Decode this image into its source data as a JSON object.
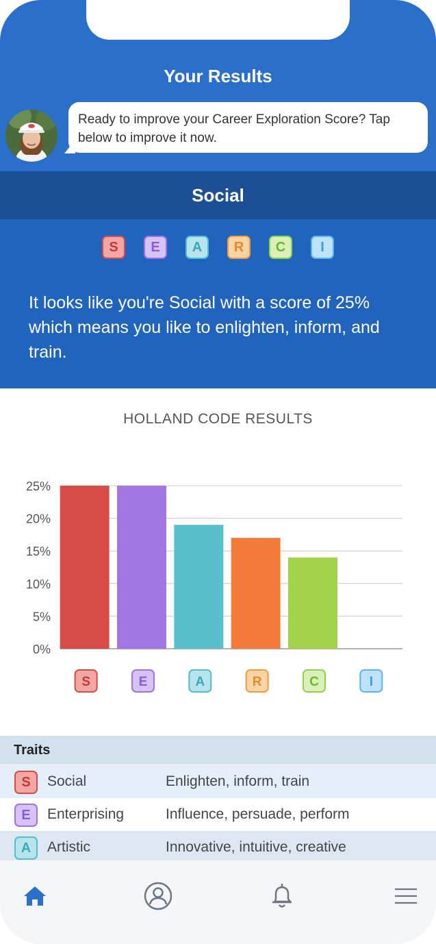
{
  "header": {
    "title": "Your Results",
    "message": "Ready to improve your Career Exploration Score? Tap below to improve it now."
  },
  "result": {
    "type_label": "Social",
    "summary": "It looks like you're Social with a score of 25% which means you like to enlighten, inform, and train."
  },
  "letters": [
    "S",
    "E",
    "A",
    "R",
    "C",
    "I"
  ],
  "letter_colors": {
    "S": {
      "fill": "#f3a6a6",
      "border": "#d94a45",
      "text": "#c23a35"
    },
    "E": {
      "fill": "#d6c2f4",
      "border": "#a073e2",
      "text": "#8a5bd6"
    },
    "A": {
      "fill": "#b7e3ea",
      "border": "#55bccb",
      "text": "#3aa8b8"
    },
    "R": {
      "fill": "#fbd4a6",
      "border": "#f29b3b",
      "text": "#e6892a"
    },
    "C": {
      "fill": "#d9f1b8",
      "border": "#93d04b",
      "text": "#6fb52f"
    },
    "I": {
      "fill": "#bfe2fb",
      "border": "#5ab4ef",
      "text": "#3a9ee0"
    }
  },
  "chart_data": {
    "type": "bar",
    "title": "HOLLAND CODE RESULTS",
    "categories": [
      "S",
      "E",
      "A",
      "R",
      "C",
      "I"
    ],
    "values": [
      25,
      25,
      19,
      17,
      14,
      0
    ],
    "colors": [
      "#d84c47",
      "#a375e2",
      "#58c0cd",
      "#f37b3a",
      "#a3d34a",
      "#5ab4ef"
    ],
    "y_ticks": [
      "0%",
      "5%",
      "10%",
      "15%",
      "20%",
      "25%"
    ],
    "ylim": [
      0,
      25
    ],
    "xlabel": "",
    "ylabel": "",
    "grid": true
  },
  "traits": {
    "header": "Traits",
    "rows": [
      {
        "letter": "S",
        "name": "Social",
        "desc": "Enlighten, inform, train",
        "bg": "#e4effa"
      },
      {
        "letter": "E",
        "name": "Enterprising",
        "desc": "Influence, persuade, perform",
        "bg": "#ffffff"
      },
      {
        "letter": "A",
        "name": "Artistic",
        "desc": "Innovative, intuitive, creative",
        "bg": "#dce7f2"
      }
    ]
  },
  "nav": {
    "active": "home",
    "icons": [
      "home-icon",
      "profile-icon",
      "bell-icon",
      "menu-icon"
    ],
    "active_color": "#2a6fca",
    "inactive_color": "#8a96a8"
  }
}
